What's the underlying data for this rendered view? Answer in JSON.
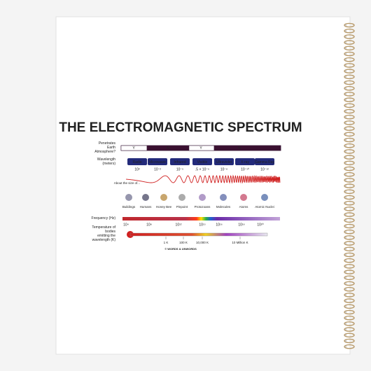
{
  "title": "THE ELECTROMAGNETIC SPECTRUM",
  "penetrates": {
    "label": "Penetrates Earth Atmosphere?",
    "marks": [
      "Y",
      "N",
      "Y",
      "N"
    ]
  },
  "wavelength": {
    "label": "Wavelength (meters)",
    "bands": [
      "Radio",
      "Microwave",
      "Infrared",
      "Visible",
      "Ultraviolet",
      "X-ray",
      "Gamma Ray"
    ],
    "values": [
      "10³",
      "10⁻²",
      "10⁻⁵",
      ".5 × 10⁻⁶",
      "10⁻⁸",
      "10⁻¹⁰",
      "10⁻¹²"
    ]
  },
  "size": {
    "label": "About the size of...",
    "objects": [
      "Buildings",
      "Humans",
      "Honey Bee",
      "Pinpoint",
      "Protozoans",
      "Molecules",
      "Atoms",
      "Atomic Nuclei"
    ]
  },
  "frequency": {
    "label": "Frequency (Hz)",
    "values": [
      "10⁴",
      "10⁸",
      "10¹²",
      "10¹⁵",
      "10¹⁶",
      "10¹⁸",
      "10²⁰"
    ]
  },
  "temperature": {
    "label": "Temperature of bodies emitting the wavelength (K)",
    "values": [
      "1 K",
      "100 K",
      "10,000 K",
      "10 Million K"
    ]
  },
  "copyright": "© WORDS & UNWORDS"
}
